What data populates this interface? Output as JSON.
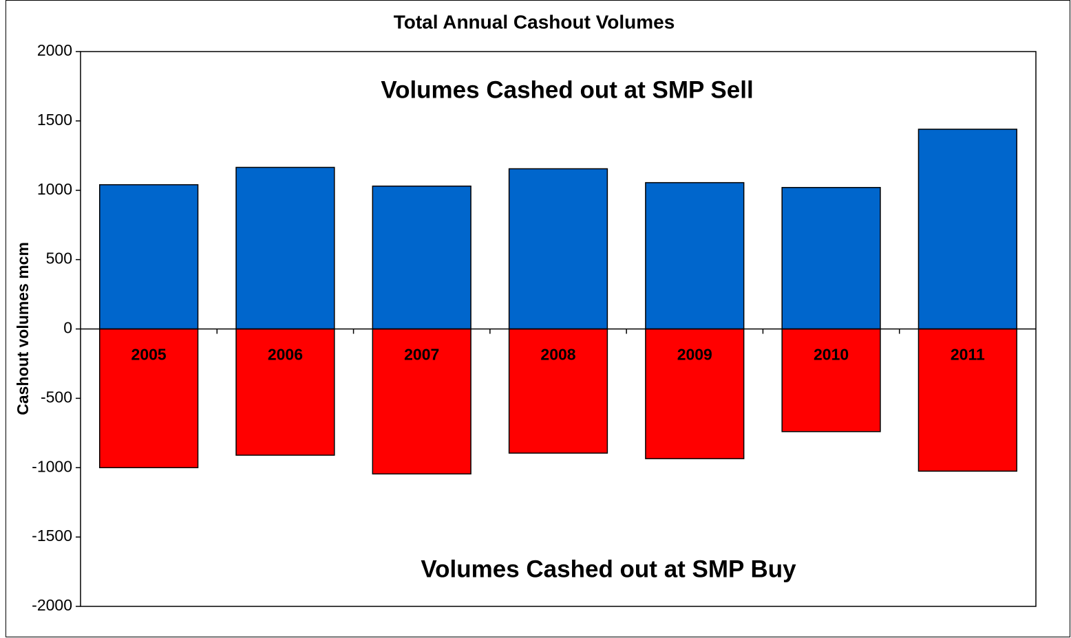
{
  "chart_data": {
    "type": "bar",
    "title": "Total Annual Cashout Volumes",
    "y_label": "Cashout volumes mcm",
    "annotations": [
      "Volumes Cashed out at SMP Sell",
      "Volumes Cashed out at SMP Buy"
    ],
    "categories": [
      "2005",
      "2006",
      "2007",
      "2008",
      "2009",
      "2010",
      "2011"
    ],
    "series": [
      {
        "color": "#0066cc",
        "values": [
          1040,
          1165,
          1030,
          1155,
          1055,
          1020,
          1440
        ]
      },
      {
        "color": "#ff0000",
        "values": [
          -1000,
          -910,
          -1045,
          -895,
          -935,
          -740,
          -1025
        ]
      }
    ],
    "ylim": [
      -2000,
      2000
    ],
    "yticks": [
      -2000,
      -1500,
      -1000,
      -500,
      0,
      500,
      1000,
      1500,
      2000
    ],
    "grid": false
  }
}
